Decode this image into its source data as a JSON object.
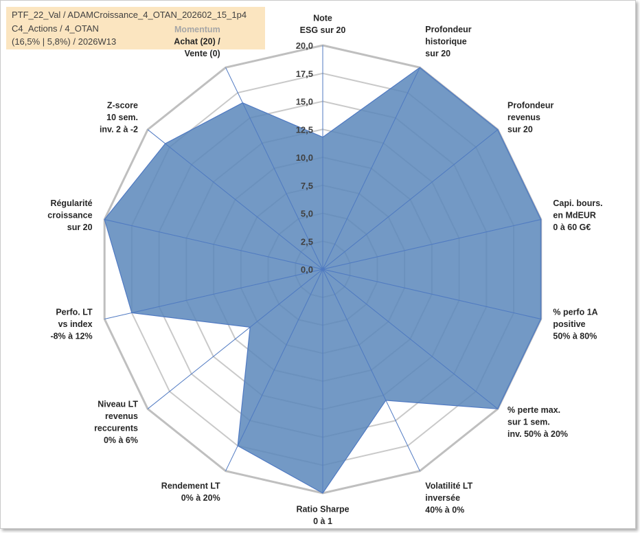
{
  "info": {
    "line1": "PTF_22_Val / ADAMCroissance_4_OTAN_202602_15_1p4",
    "line2": "C4_Actions / 4_OTAN",
    "line3": "(16,5% | 5,8%) / 2026W13"
  },
  "colors": {
    "fill": "#5b87bb",
    "stroke": "#4f79c2",
    "grid": "#c9c9c9",
    "outer_ring": "#bfbfbf",
    "info_bg": "#fbe5c0"
  },
  "chart_data": {
    "type": "radar",
    "title": "",
    "rmin": 0,
    "rmax": 20,
    "ticks": [
      "0,0",
      "2,5",
      "5,0",
      "7,5",
      "10,0",
      "12,5",
      "15,0",
      "17,5",
      "20,0"
    ],
    "axes": [
      {
        "lines": [
          "Note",
          "ESG sur 20"
        ]
      },
      {
        "lines": [
          "Profondeur",
          "historique",
          "sur 20"
        ]
      },
      {
        "lines": [
          "Profondeur",
          "revenus",
          "sur 20"
        ]
      },
      {
        "lines": [
          "Capi. bours.",
          "en MdEUR",
          "0 à 60 G€"
        ]
      },
      {
        "lines": [
          "% perfo 1A",
          "positive",
          "50% à 80%"
        ]
      },
      {
        "lines": [
          "% perte max.",
          "sur 1 sem.",
          "inv. 50% à 20%"
        ]
      },
      {
        "lines": [
          "Volatilité LT",
          "inversée",
          "40% à 0%"
        ]
      },
      {
        "lines": [
          "Ratio Sharpe",
          "0 à 1"
        ]
      },
      {
        "lines": [
          "Rendement LT",
          "0% à 20%"
        ]
      },
      {
        "lines": [
          "Niveau LT",
          "revenus",
          "reccurents",
          "0% à 6%"
        ]
      },
      {
        "lines": [
          "Perfo. LT",
          "vs index",
          "-8% à 12%"
        ]
      },
      {
        "lines": [
          "Régularité",
          "croissance",
          "sur 20"
        ]
      },
      {
        "lines": [
          "Z-score",
          "10 sem.",
          "inv. 2 à -2"
        ]
      },
      {
        "lines": [
          "Momentum",
          "Achat (20) /",
          "Vente (0)"
        ]
      }
    ],
    "values": [
      11.8,
      20.0,
      20.0,
      20.0,
      20.0,
      20.0,
      13.0,
      20.0,
      17.5,
      8.3,
      17.5,
      20.0,
      18.0,
      16.5
    ]
  }
}
